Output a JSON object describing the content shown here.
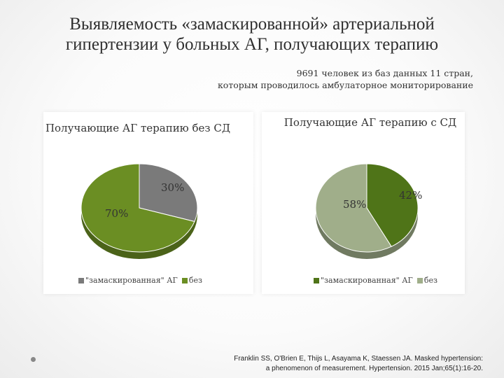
{
  "slide": {
    "title": "Выявляемость «замаскированной» артериальной гипертензии у больных АГ, получающих терапию",
    "subtitle_line1": "9691 человек из баз данных 11 стран,",
    "subtitle_line2": "которым проводилось амбулаторное мониторирование",
    "reference_line1": "Franklin SS, O'Brien E, Thijs L, Asayama K, Staessen JA. Masked hypertension:",
    "reference_line2": "a phenomenon of measurement. Hypertension. 2015 Jan;65(1):16-20."
  },
  "chart_data": [
    {
      "type": "pie",
      "title": "Получающие АГ терапию без СД",
      "categories": [
        "\"замаскированная\" АГ",
        "без"
      ],
      "values": [
        30,
        70
      ],
      "value_labels": [
        "30%",
        "70%"
      ],
      "colors": [
        "#7a7a7a",
        "#6b8e23"
      ],
      "legend_position": "bottom"
    },
    {
      "type": "pie",
      "title": "Получающие АГ терапию с СД",
      "categories": [
        "\"замаскированная\" АГ",
        "без"
      ],
      "values": [
        42,
        58
      ],
      "value_labels": [
        "42%",
        "58%"
      ],
      "colors": [
        "#4f7418",
        "#a0ae8a"
      ],
      "legend_position": "bottom"
    }
  ]
}
